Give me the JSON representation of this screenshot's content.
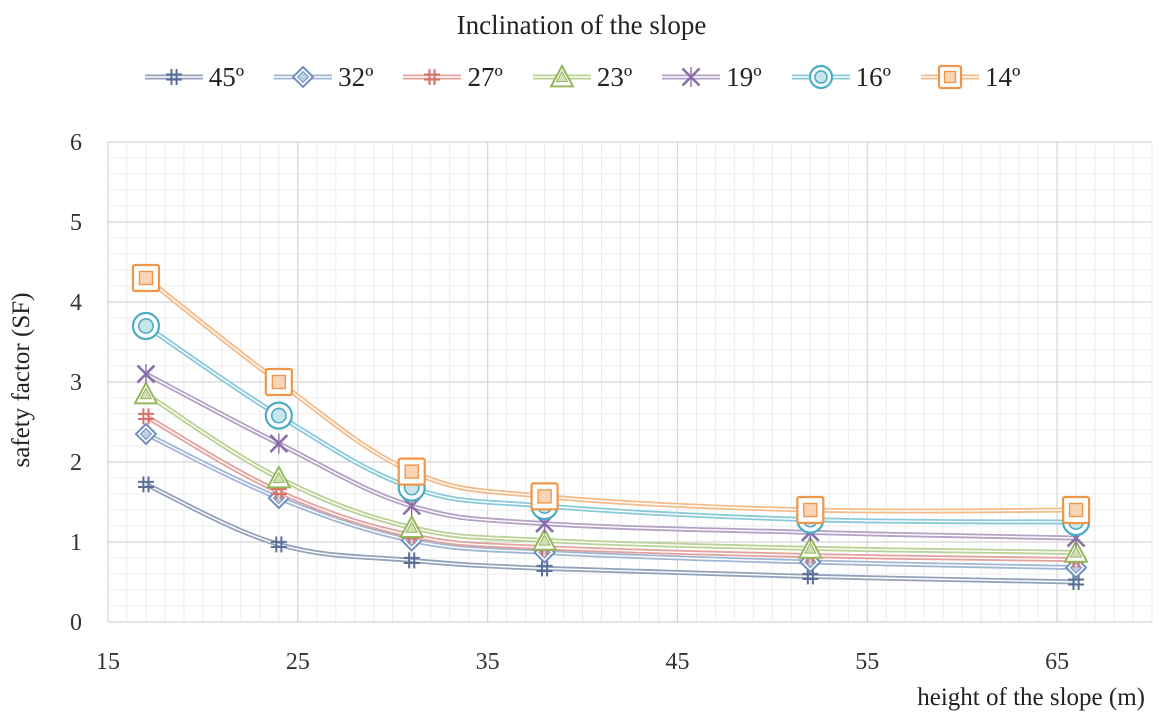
{
  "chart_data": {
    "type": "line",
    "title": "Inclination of the slope",
    "xlabel": "height of the slope (m)",
    "ylabel": "safety factor (SF)",
    "xlim": [
      15,
      70
    ],
    "ylim": [
      0,
      6
    ],
    "xticks": [
      15,
      25,
      35,
      45,
      55,
      65
    ],
    "yticks": [
      0,
      1,
      2,
      3,
      4,
      5,
      6
    ],
    "grid": true,
    "legend_position": "top",
    "x": [
      17,
      24,
      31,
      38,
      52,
      66
    ],
    "series": [
      {
        "name": "45º",
        "color": "#5a6f96",
        "marker": "hash",
        "values": [
          1.72,
          0.97,
          0.77,
          0.67,
          0.57,
          0.5
        ]
      },
      {
        "name": "32º",
        "color": "#6f8fbf",
        "marker": "diamond",
        "values": [
          2.35,
          1.55,
          1.02,
          0.87,
          0.75,
          0.68
        ]
      },
      {
        "name": "27º",
        "color": "#d6706a",
        "marker": "hash",
        "values": [
          2.57,
          1.63,
          1.08,
          0.93,
          0.83,
          0.78
        ]
      },
      {
        "name": "23º",
        "color": "#96b85c",
        "marker": "triangle",
        "values": [
          2.85,
          1.8,
          1.18,
          1.02,
          0.92,
          0.87
        ]
      },
      {
        "name": "19º",
        "color": "#8a6fa8",
        "marker": "x",
        "values": [
          3.1,
          2.23,
          1.45,
          1.23,
          1.12,
          1.05
        ]
      },
      {
        "name": "16º",
        "color": "#4bacc6",
        "marker": "circle",
        "values": [
          3.7,
          2.58,
          1.68,
          1.45,
          1.28,
          1.25
        ]
      },
      {
        "name": "14º",
        "color": "#f0964a",
        "marker": "square",
        "values": [
          4.3,
          3.0,
          1.88,
          1.57,
          1.4,
          1.4
        ]
      }
    ]
  }
}
